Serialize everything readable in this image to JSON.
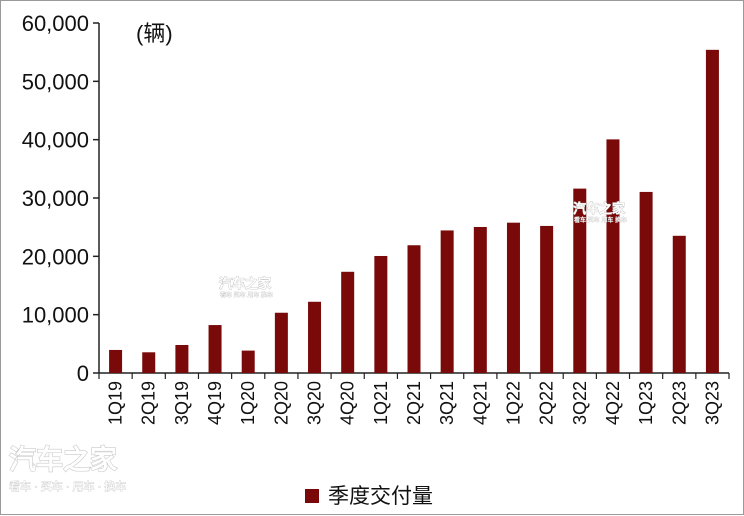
{
  "chart_data": {
    "type": "bar",
    "unit_label": "(辆)",
    "categories": [
      "1Q19",
      "2Q19",
      "3Q19",
      "4Q19",
      "1Q20",
      "2Q20",
      "3Q20",
      "4Q20",
      "1Q21",
      "2Q21",
      "3Q21",
      "4Q21",
      "1Q22",
      "2Q22",
      "3Q22",
      "4Q22",
      "1Q23",
      "2Q23",
      "3Q23"
    ],
    "series": [
      {
        "name": "季度交付量",
        "color": "#7a0a0a",
        "values": [
          3950,
          3550,
          4800,
          8220,
          3840,
          10330,
          12210,
          17350,
          20060,
          21900,
          24440,
          25030,
          25770,
          25210,
          31610,
          40050,
          31040,
          23520,
          55400
        ]
      }
    ],
    "ylim": [
      0,
      60000
    ],
    "yticks": [
      "0",
      "10,000",
      "20,000",
      "30,000",
      "40,000",
      "50,000",
      "60,000"
    ],
    "ytick_values": [
      0,
      10000,
      20000,
      30000,
      40000,
      50000,
      60000
    ],
    "grid": false,
    "legend_position": "bottom-center"
  },
  "watermark": {
    "logo_text": "汽车之家",
    "tagline": "看车 · 买车 · 用车 · 换车"
  }
}
